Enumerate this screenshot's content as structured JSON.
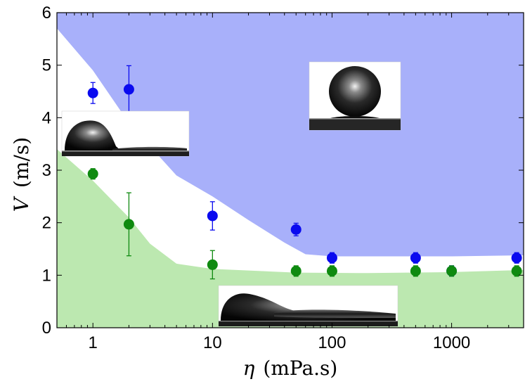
{
  "chart_data": {
    "type": "scatter",
    "x_scale": "log",
    "xlim": [
      0.5,
      4000
    ],
    "ylim": [
      0,
      6
    ],
    "xlabel": "η (mPa.s)",
    "ylabel": "V (m/s)",
    "x_ticks": [
      {
        "value": 1,
        "label": "1"
      },
      {
        "value": 10,
        "label": "10"
      },
      {
        "value": 100,
        "label": "100"
      },
      {
        "value": 1000,
        "label": "1000"
      }
    ],
    "y_ticks": [
      {
        "value": 0,
        "label": "0"
      },
      {
        "value": 1,
        "label": "1"
      },
      {
        "value": 2,
        "label": "2"
      },
      {
        "value": 3,
        "label": "3"
      },
      {
        "value": 4,
        "label": "4"
      },
      {
        "value": 5,
        "label": "5"
      },
      {
        "value": 6,
        "label": "6"
      }
    ],
    "regions": [
      {
        "color": "#a8b0fa",
        "boundary": [
          [
            0.5,
            5.7
          ],
          [
            1,
            4.9
          ],
          [
            2,
            3.9
          ],
          [
            5,
            2.9
          ],
          [
            10,
            2.5
          ],
          [
            20,
            2.05
          ],
          [
            40,
            1.62
          ],
          [
            60,
            1.4
          ],
          [
            100,
            1.36
          ],
          [
            1000,
            1.36
          ],
          [
            4000,
            1.38
          ]
        ],
        "fill_to": "top"
      },
      {
        "color": "#bce8b0",
        "boundary": [
          [
            0.5,
            3.4
          ],
          [
            1,
            2.8
          ],
          [
            2,
            2.1
          ],
          [
            3,
            1.6
          ],
          [
            5,
            1.22
          ],
          [
            10,
            1.12
          ],
          [
            50,
            1.05
          ],
          [
            200,
            1.04
          ],
          [
            1000,
            1.06
          ],
          [
            4000,
            1.1
          ]
        ],
        "fill_to": "bottom"
      }
    ],
    "series": [
      {
        "color": "#0a0aef",
        "points": [
          {
            "x": 1,
            "y": 4.47,
            "err": 0.2
          },
          {
            "x": 2,
            "y": 4.54,
            "err": 0.45
          },
          {
            "x": 10,
            "y": 2.13,
            "err": 0.27
          },
          {
            "x": 50,
            "y": 1.87,
            "err": 0.12
          },
          {
            "x": 100,
            "y": 1.33,
            "err": 0.1
          },
          {
            "x": 500,
            "y": 1.33,
            "err": 0.1
          },
          {
            "x": 1000,
            "y": 1.08,
            "err": 0.1
          },
          {
            "x": 3500,
            "y": 1.33,
            "err": 0.1
          }
        ]
      },
      {
        "color": "#0f8a10",
        "points": [
          {
            "x": 1,
            "y": 2.93,
            "err": 0.1
          },
          {
            "x": 2,
            "y": 1.97,
            "err": 0.6
          },
          {
            "x": 10,
            "y": 1.2,
            "err": 0.27
          },
          {
            "x": 50,
            "y": 1.08,
            "err": 0.1
          },
          {
            "x": 100,
            "y": 1.08,
            "err": 0.1
          },
          {
            "x": 500,
            "y": 1.08,
            "err": 0.1
          },
          {
            "x": 1000,
            "y": 1.08,
            "err": 0.1
          },
          {
            "x": 3500,
            "y": 1.08,
            "err": 0.1
          }
        ]
      }
    ],
    "insets": [
      {
        "kind": "drop-spreading-left"
      },
      {
        "kind": "drop-rebound-round"
      },
      {
        "kind": "drop-spreading-long"
      }
    ]
  }
}
